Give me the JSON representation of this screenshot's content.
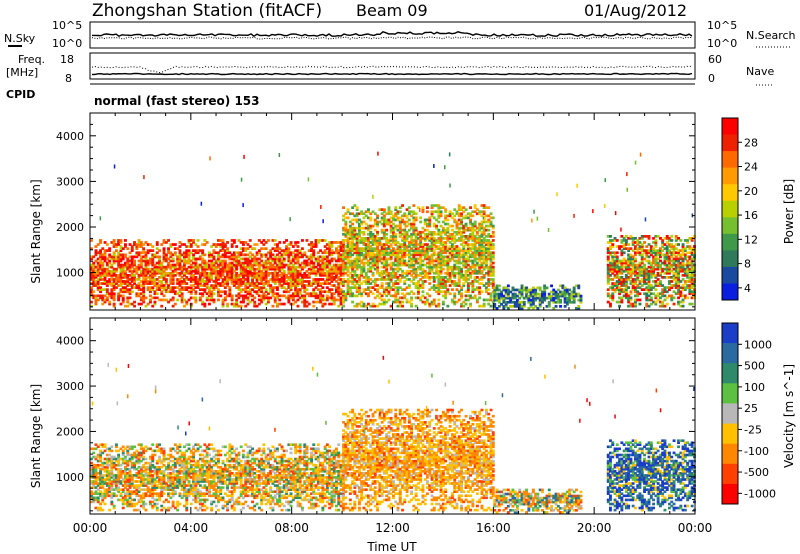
{
  "header": {
    "station": "Zhongshan Station (fitACF)",
    "beam": "Beam 09",
    "date": "01/Aug/2012"
  },
  "param_panel": {
    "nsky_label": "N.Sky",
    "nsearch_label": "N.Search",
    "nsky_ticks": [
      "10^5",
      "10^0"
    ],
    "nsearch_ticks": [
      "10^5",
      "10^0"
    ],
    "freq_label": [
      "Freq.",
      "[MHz]"
    ],
    "freq_ticks": [
      "18",
      "8"
    ],
    "nave_label": "Nave",
    "nave_ticks": [
      "60",
      "0"
    ],
    "cpid_label": "CPID",
    "cpid_text": "normal (fast stereo) 153"
  },
  "chart_data": [
    {
      "type": "heatmap",
      "title": "",
      "xlabel": "Time UT",
      "ylabel": "Slant Range [km]",
      "xlim_hours": [
        0,
        24
      ],
      "ylim_km": [
        180,
        4500
      ],
      "x_tick_labels": [
        "00:00",
        "04:00",
        "08:00",
        "12:00",
        "16:00",
        "20:00",
        "00:00"
      ],
      "y_tick_labels": [
        "1000",
        "2000",
        "3000",
        "4000"
      ],
      "colorbar": {
        "label": "Power [dB]",
        "tick_labels": [
          "28",
          "24",
          "20",
          "16",
          "12",
          "8",
          "4"
        ],
        "colors": [
          "#ff0000",
          "#ee2200",
          "#ff6a00",
          "#ff9a00",
          "#ffc800",
          "#b8d000",
          "#76c030",
          "#3e9a4a",
          "#2e7a5a",
          "#1a4aa0",
          "#0a1ee0"
        ]
      },
      "scatter_regions": [
        {
          "t_start": 0.0,
          "t_end": 10.0,
          "range_min": 250,
          "range_max": 1700,
          "dominant": "red-orange"
        },
        {
          "t_start": 10.0,
          "t_end": 16.0,
          "range_min": 250,
          "range_max": 2500,
          "dominant": "orange-green"
        },
        {
          "t_start": 16.0,
          "t_end": 19.5,
          "range_min": 200,
          "range_max": 700,
          "dominant": "green-blue"
        },
        {
          "t_start": 20.5,
          "t_end": 24.0,
          "range_min": 250,
          "range_max": 1800,
          "dominant": "green-red"
        }
      ]
    },
    {
      "type": "heatmap",
      "title": "",
      "xlabel": "Time UT",
      "ylabel": "Slant Range [km]",
      "xlim_hours": [
        0,
        24
      ],
      "ylim_km": [
        180,
        4500
      ],
      "x_tick_labels": [
        "00:00",
        "04:00",
        "08:00",
        "12:00",
        "16:00",
        "20:00",
        "00:00"
      ],
      "y_tick_labels": [
        "1000",
        "2000",
        "3000",
        "4000"
      ],
      "colorbar": {
        "label": "Velocity [m s^-1]",
        "tick_labels": [
          "1000",
          "500",
          "100",
          "25",
          "-25",
          "-100",
          "-500",
          "-1000"
        ],
        "colors": [
          "#1a3ec8",
          "#2a6aa0",
          "#2e8a6a",
          "#5cc040",
          "#b8b8b8",
          "#ffc000",
          "#ff8800",
          "#ff4000",
          "#ff0000"
        ]
      },
      "scatter_regions": [
        {
          "t_start": 0.0,
          "t_end": 10.0,
          "range_min": 250,
          "range_max": 1700,
          "dominant": "green-orange"
        },
        {
          "t_start": 10.0,
          "t_end": 16.0,
          "range_min": 250,
          "range_max": 2500,
          "dominant": "orange"
        },
        {
          "t_start": 16.0,
          "t_end": 19.5,
          "range_min": 200,
          "range_max": 700,
          "dominant": "orange-green"
        },
        {
          "t_start": 20.5,
          "t_end": 24.0,
          "range_min": 250,
          "range_max": 1800,
          "dominant": "blue-green"
        }
      ]
    }
  ]
}
